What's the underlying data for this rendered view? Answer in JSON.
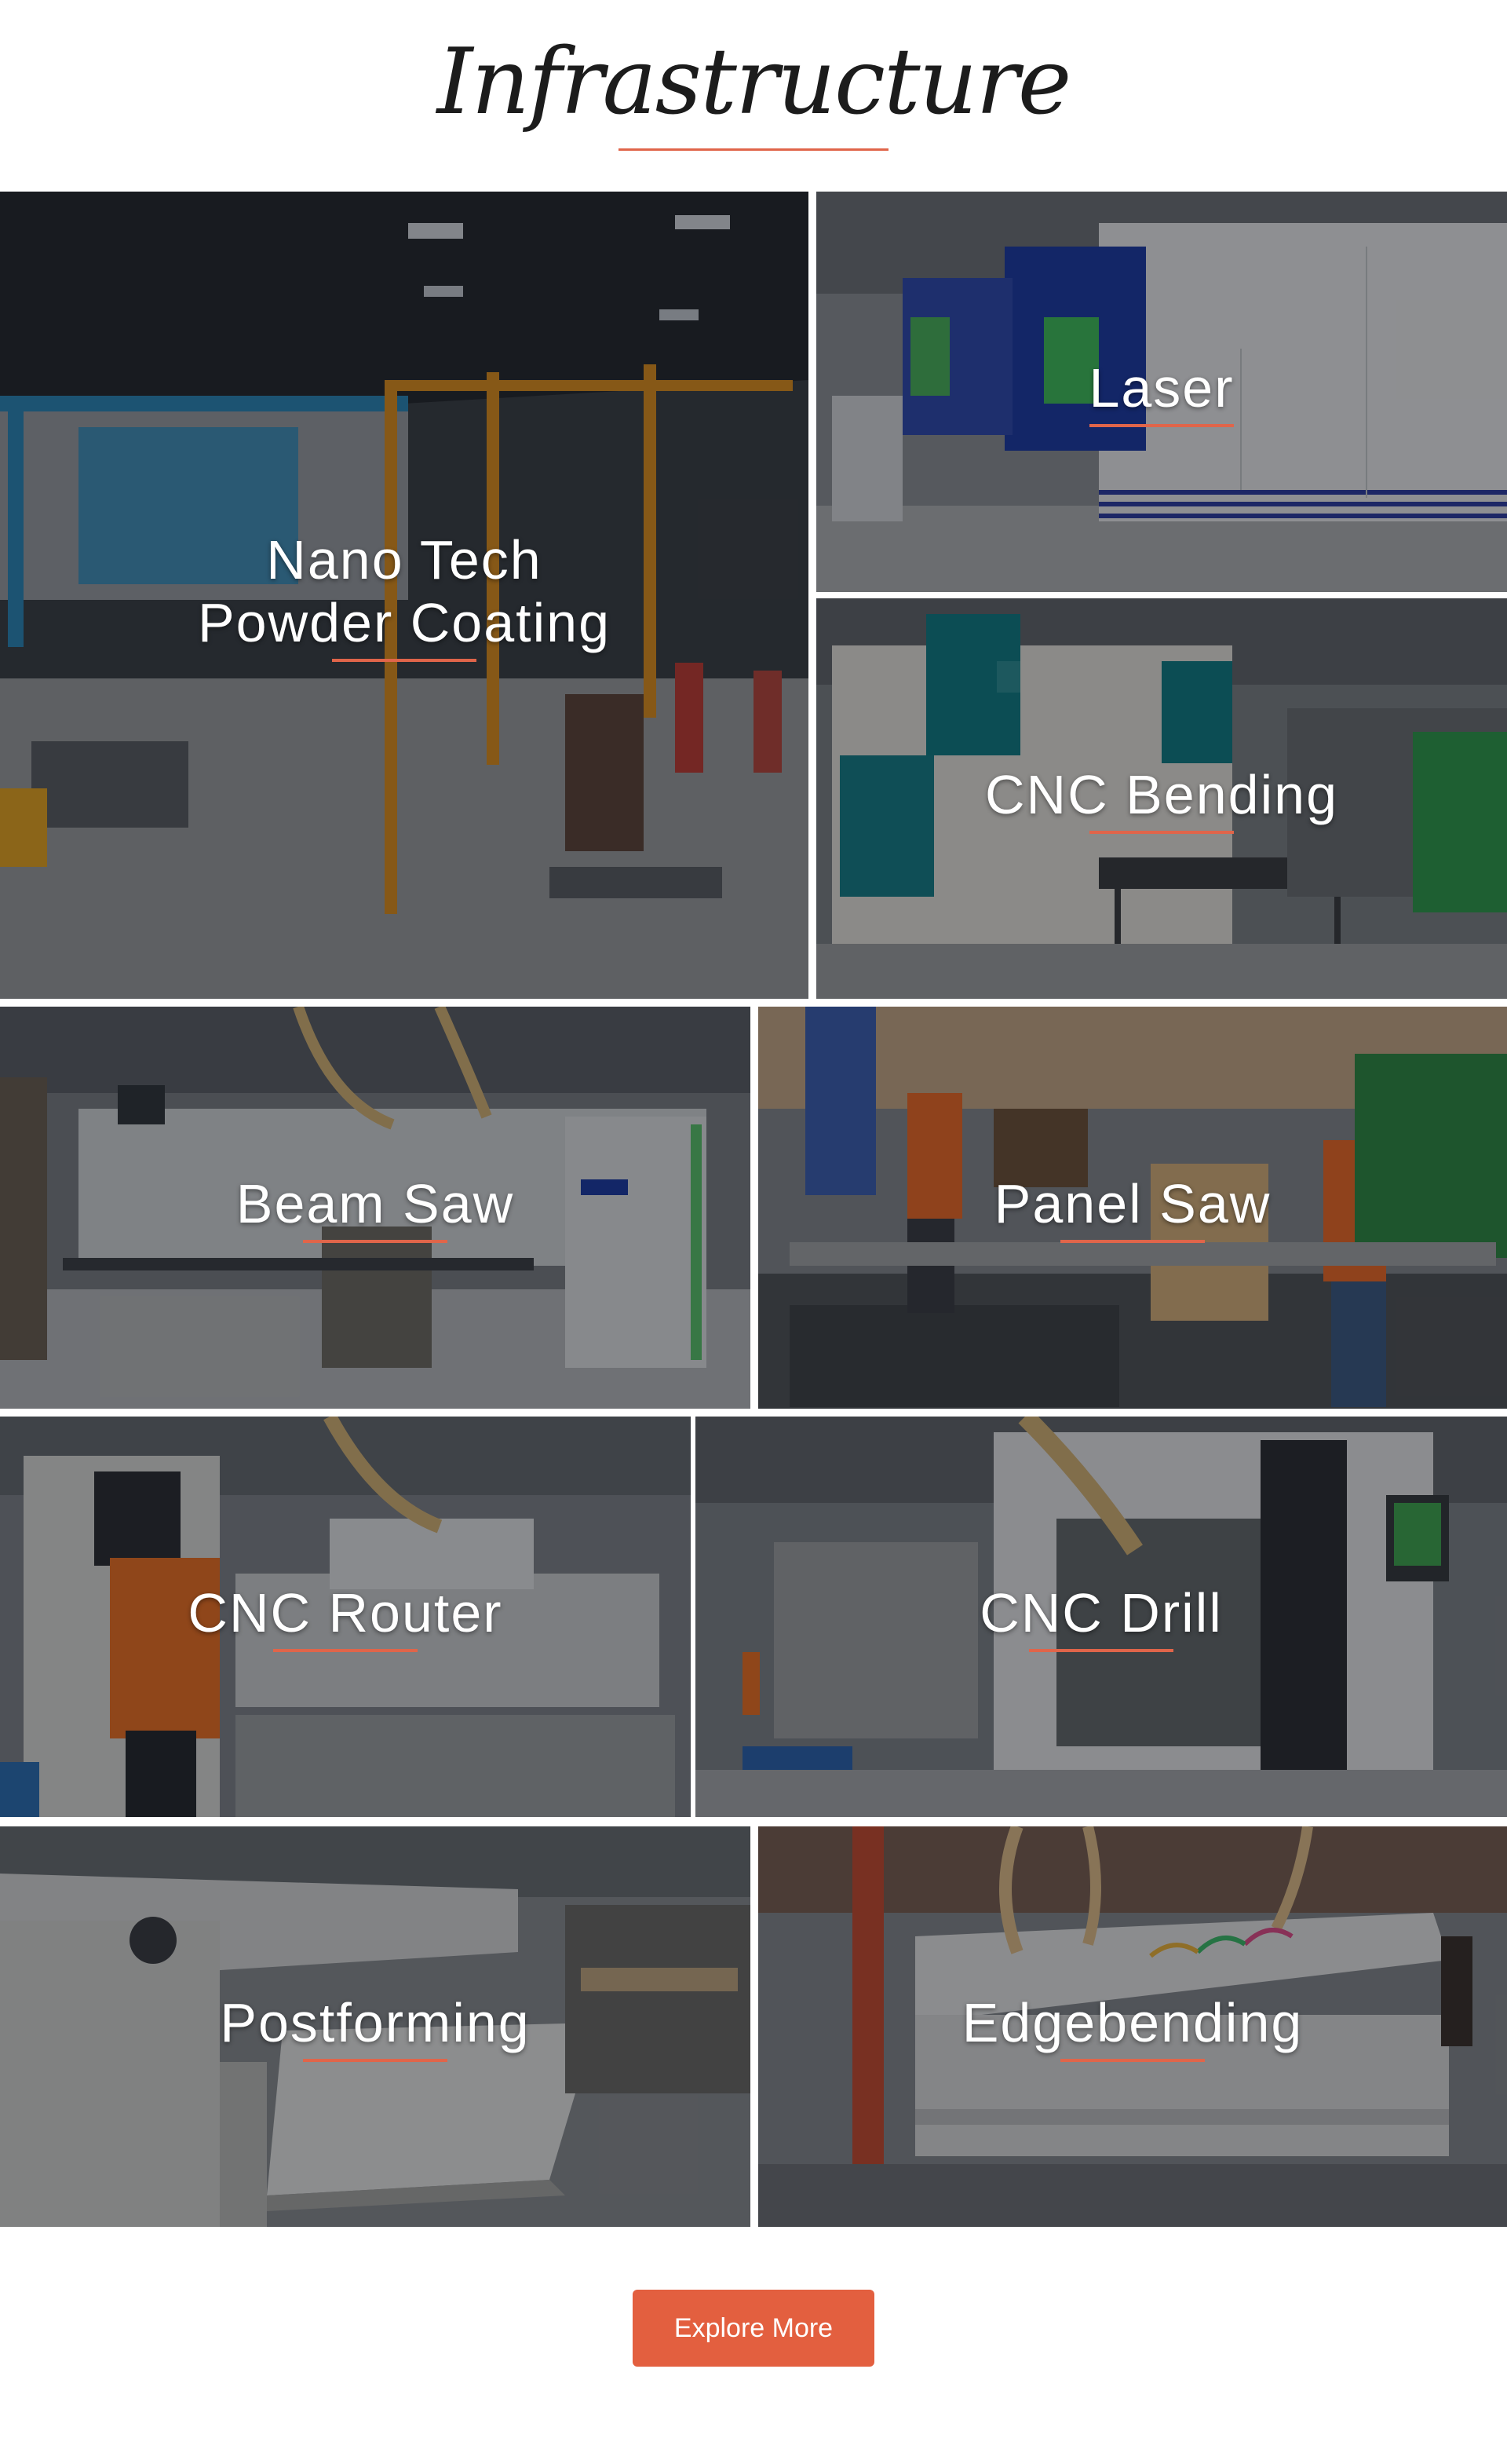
{
  "header": {
    "title": "Infrastructure"
  },
  "tiles": [
    {
      "name": "Nano Tech Powder Coating",
      "lines": [
        "Nano Tech",
        "Powder Coating"
      ]
    },
    {
      "name": "Laser",
      "lines": [
        "Laser"
      ]
    },
    {
      "name": "CNC Bending",
      "lines": [
        "CNC Bending"
      ]
    },
    {
      "name": "Beam Saw",
      "lines": [
        "Beam Saw"
      ]
    },
    {
      "name": "Panel Saw",
      "lines": [
        "Panel Saw"
      ]
    },
    {
      "name": "CNC Router",
      "lines": [
        "CNC Router"
      ]
    },
    {
      "name": "CNC Drill",
      "lines": [
        "CNC Drill"
      ]
    },
    {
      "name": "Postforming",
      "lines": [
        "Postforming"
      ]
    },
    {
      "name": "Edgebending",
      "lines": [
        "Edgebending"
      ]
    }
  ],
  "cta": {
    "label": "Explore More"
  },
  "colors": {
    "accent": "#e0654a",
    "button": "#e35f3f",
    "title": "#1c1c1c"
  }
}
